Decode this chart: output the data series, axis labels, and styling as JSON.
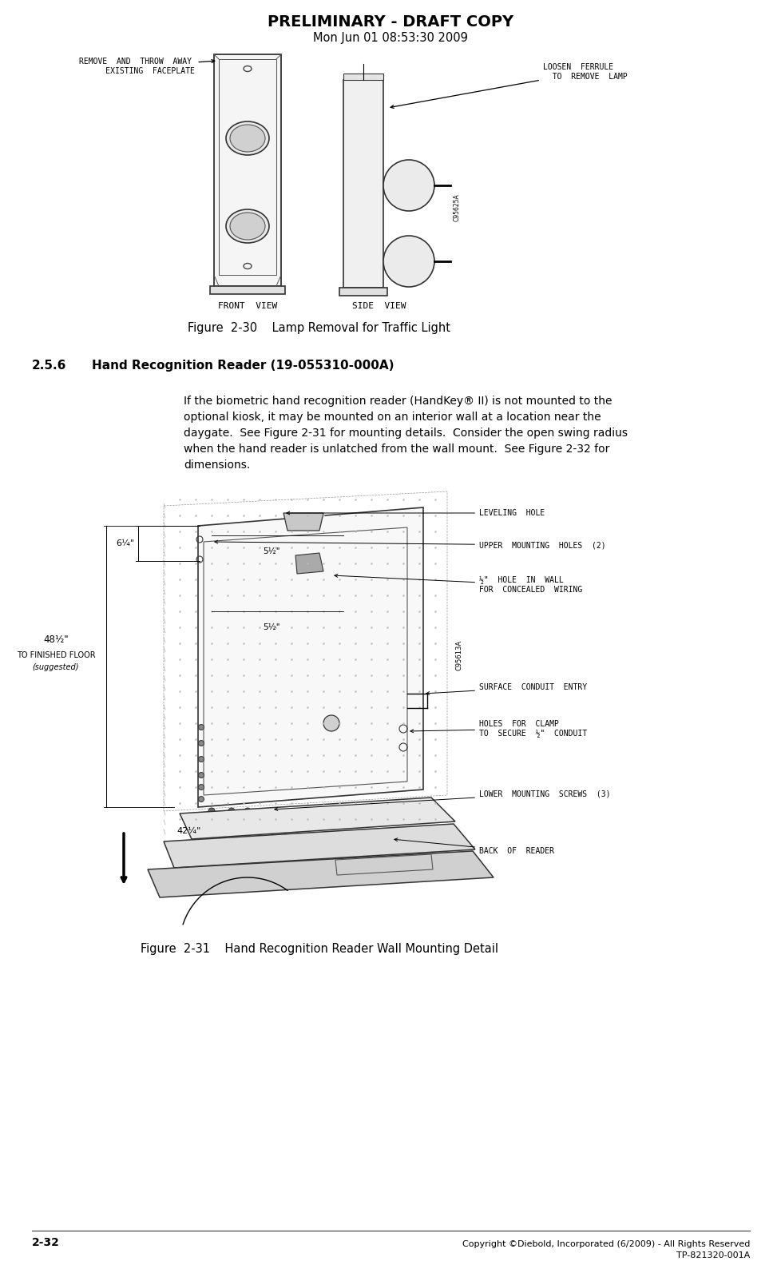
{
  "header_title": "PRELIMINARY - DRAFT COPY",
  "header_subtitle": "Mon Jun 01 08:53:30 2009",
  "section_number": "2.5.6",
  "section_title": "Hand Recognition Reader (19-055310-000A)",
  "section_body_lines": [
    "If the biometric hand recognition reader (HandKey® II) is not mounted to the",
    "optional kiosk, it may be mounted on an interior wall at a location near the",
    "daygate.  See Figure 2-31 for mounting details.  Consider the open swing radius",
    "when the hand reader is unlatched from the wall mount.  See Figure 2-32 for",
    "dimensions."
  ],
  "fig1_caption": "Figure  2-30    Lamp Removal for Traffic Light",
  "fig2_caption": "Figure  2-31    Hand Recognition Reader Wall Mounting Detail",
  "footer_left": "2-32",
  "footer_right1": "Copyright ©Diebold, Incorporated (6/2009) - All Rights Reserved",
  "footer_right2": "TP-821320-001A",
  "bg_color": "#ffffff",
  "text_color": "#000000",
  "fig1_label_remove": "REMOVE  AND  THROW  AWAY\n      EXISTING  FACEPLATE",
  "fig1_label_loosen": "LOOSEN  FERRULE\n  TO  REMOVE  LAMP",
  "fig1_label_front": "FRONT  VIEW",
  "fig1_label_side": "SIDE  VIEW",
  "fig1_code": "C95625A",
  "fig2_code": "C95613A",
  "fig2_label_leveling": "LEVELING  HOLE",
  "fig2_label_upper": "UPPER  MOUNTING  HOLES  (2)",
  "fig2_label_hole": "½\"  HOLE  IN  WALL\nFOR  CONCEALED  WIRING",
  "fig2_label_surface": "SURFACE  CONDUIT  ENTRY",
  "fig2_label_holes": "HOLES  FOR  CLAMP\nTO  SECURE  ½\"  CONDUIT",
  "fig2_label_lower": "LOWER  MOUNTING  SCREWS  (3)",
  "fig2_label_back": "BACK  OF  READER",
  "fig2_dim_6quarter": "6¼\"",
  "fig2_dim_48half": "48½\"",
  "fig2_dim_floor": "TO FINISHED FLOOR\n(suggested)",
  "fig2_dim_42quarter": "42¼\"",
  "fig2_dim_5half_top": "5½\"",
  "fig2_dim_5half_mid": "5½\""
}
